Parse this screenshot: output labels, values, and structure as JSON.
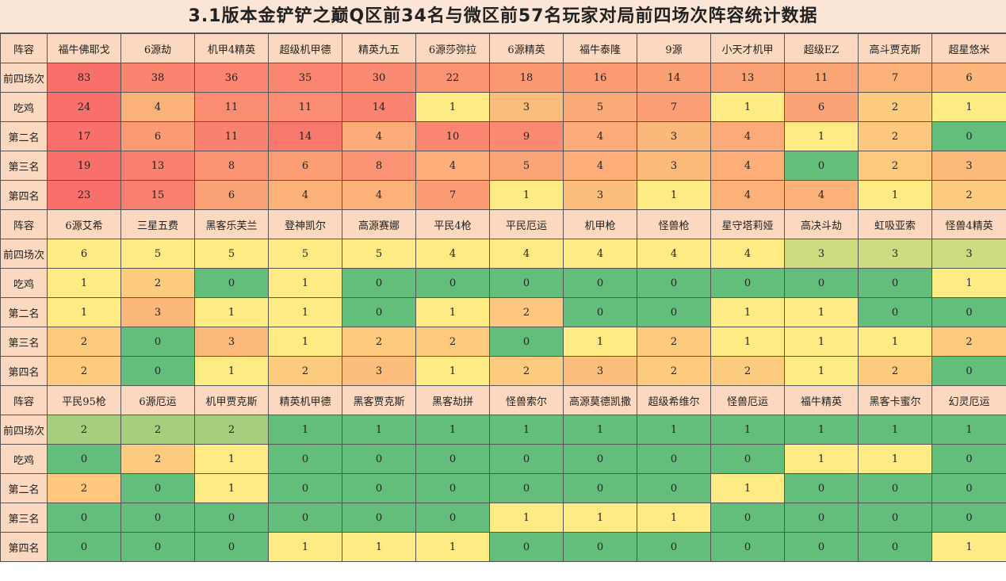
{
  "title": "3.1版本金铲铲之巅Q区前34名与微区前57名玩家对局前四场次阵容统计数据",
  "row_labels": [
    "前四场次",
    "吃鸡",
    "第二名",
    "第三名",
    "第四名"
  ],
  "header_label": "阵容",
  "colors": {
    "header": "#fbd8bf",
    "scale_max": "#f8696b",
    "scale_mid": "#ffeb84",
    "scale_min": "#63be7b"
  },
  "blocks": [
    {
      "comps": [
        "福牛佛耶戈",
        "6源劫",
        "机甲4精英",
        "超级机甲德",
        "精英九五",
        "6源莎弥拉",
        "6源精英",
        "福牛泰隆",
        "9源",
        "小天才机甲",
        "超级EZ",
        "高斗贾克斯",
        "超星悠米"
      ],
      "rows": [
        [
          83,
          38,
          36,
          35,
          30,
          22,
          18,
          16,
          14,
          13,
          11,
          7,
          6
        ],
        [
          24,
          4,
          11,
          11,
          14,
          1,
          3,
          5,
          7,
          1,
          6,
          2,
          1
        ],
        [
          17,
          6,
          11,
          14,
          4,
          10,
          9,
          4,
          3,
          4,
          1,
          2,
          0
        ],
        [
          19,
          13,
          8,
          6,
          8,
          4,
          5,
          4,
          3,
          4,
          0,
          2,
          3
        ],
        [
          23,
          15,
          6,
          4,
          4,
          7,
          1,
          3,
          1,
          4,
          4,
          1,
          2
        ]
      ]
    },
    {
      "comps": [
        "6源艾希",
        "三星五费",
        "黑客乐芙兰",
        "登神凯尔",
        "高源赛娜",
        "平民4枪",
        "平民厄运",
        "机甲枪",
        "怪兽枪",
        "星守塔莉娅",
        "高决斗劫",
        "虹吸亚索",
        "怪兽4精英"
      ],
      "rows": [
        [
          6,
          5,
          5,
          5,
          5,
          4,
          4,
          4,
          4,
          4,
          3,
          3,
          3
        ],
        [
          1,
          2,
          0,
          1,
          0,
          0,
          0,
          0,
          0,
          0,
          0,
          0,
          1
        ],
        [
          1,
          3,
          1,
          1,
          0,
          1,
          2,
          0,
          0,
          1,
          1,
          0,
          0
        ],
        [
          2,
          0,
          3,
          1,
          2,
          2,
          0,
          1,
          2,
          1,
          1,
          1,
          2
        ],
        [
          2,
          0,
          1,
          2,
          3,
          1,
          2,
          3,
          2,
          2,
          1,
          2,
          0
        ]
      ]
    },
    {
      "comps": [
        "平民95枪",
        "6源厄运",
        "机甲贾克斯",
        "精英机甲德",
        "黑客贾克斯",
        "黑客劫拼",
        "怪兽索尔",
        "高源莫德凯撒",
        "超级希维尔",
        "怪兽厄运",
        "福牛精英",
        "黑客卡蜜尔",
        "幻灵厄运"
      ],
      "rows": [
        [
          2,
          2,
          2,
          1,
          1,
          1,
          1,
          1,
          1,
          1,
          1,
          1,
          1
        ],
        [
          0,
          2,
          1,
          0,
          0,
          0,
          0,
          0,
          0,
          0,
          1,
          1,
          0
        ],
        [
          2,
          0,
          1,
          0,
          0,
          0,
          0,
          0,
          0,
          1,
          0,
          0,
          0
        ],
        [
          0,
          0,
          0,
          0,
          0,
          0,
          1,
          1,
          1,
          0,
          0,
          0,
          0
        ],
        [
          0,
          0,
          0,
          1,
          1,
          1,
          0,
          0,
          0,
          0,
          0,
          0,
          1
        ]
      ]
    }
  ]
}
